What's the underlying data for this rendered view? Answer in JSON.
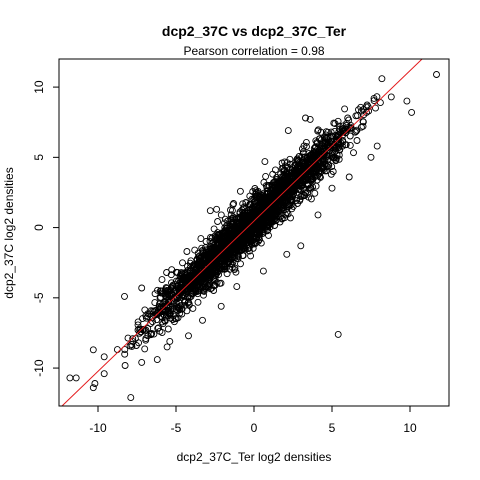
{
  "chart_data": {
    "type": "scatter",
    "title": "dcp2_37C vs dcp2_37C_Ter",
    "subtitle": "Pearson correlation =  0.98",
    "xlabel": "dcp2_37C_Ter log2 densities",
    "ylabel": "dcp2_37C log2 densities",
    "xlim": [
      -12.5,
      12.5
    ],
    "ylim": [
      -12.7,
      12.0
    ],
    "xticks": [
      -10,
      -5,
      0,
      5,
      10
    ],
    "yticks": [
      -10,
      -5,
      0,
      5,
      10
    ],
    "grid": false,
    "fit_line": {
      "slope": 1.07,
      "intercept": 0.47,
      "color": "#e41a1c"
    },
    "point_color": "#000000",
    "notable_points": [
      {
        "x": 11.7,
        "y": 10.9
      },
      {
        "x": 8.2,
        "y": 10.6
      },
      {
        "x": 5.4,
        "y": -7.6
      },
      {
        "x": -7.9,
        "y": -12.1
      },
      {
        "x": -11.8,
        "y": -10.7
      },
      {
        "x": -11.4,
        "y": -10.7
      },
      {
        "x": -10.2,
        "y": -11.1
      },
      {
        "x": -10.3,
        "y": -11.4
      },
      {
        "x": -9.6,
        "y": -10.4
      },
      {
        "x": -10.3,
        "y": -8.7
      },
      {
        "x": -6.3,
        "y": -5.9
      },
      {
        "x": -5.6,
        "y": -3.2
      },
      {
        "x": -3.7,
        "y": -2.9
      },
      {
        "x": -4.3,
        "y": -1.7
      },
      {
        "x": -2.8,
        "y": 1.2
      },
      {
        "x": 0.7,
        "y": 4.7
      },
      {
        "x": 2.2,
        "y": 6.9
      },
      {
        "x": 3.3,
        "y": 7.8
      },
      {
        "x": 3.6,
        "y": 7.7
      },
      {
        "x": 4.6,
        "y": 6.6
      },
      {
        "x": 5.7,
        "y": 6.1
      },
      {
        "x": 7.5,
        "y": 5.0
      },
      {
        "x": 7.9,
        "y": 5.8
      },
      {
        "x": 9.8,
        "y": 9.0
      },
      {
        "x": 10.1,
        "y": 8.2
      },
      {
        "x": -9.6,
        "y": -9.2
      },
      {
        "x": -7.6,
        "y": -7.9
      },
      {
        "x": -6.6,
        "y": -7.6
      },
      {
        "x": -5.1,
        "y": -6.7
      },
      {
        "x": -4.2,
        "y": -5.3
      },
      {
        "x": -3.8,
        "y": -1.6
      },
      {
        "x": -2.5,
        "y": -0.6
      },
      {
        "x": -2.4,
        "y": 1.3
      },
      {
        "x": -0.2,
        "y": 1.6
      },
      {
        "x": 0.1,
        "y": 2.4
      },
      {
        "x": 1.8,
        "y": 4.6
      },
      {
        "x": 3.1,
        "y": 5.6
      },
      {
        "x": 4.2,
        "y": 6.3
      },
      {
        "x": 6.0,
        "y": 7.0
      },
      {
        "x": 6.6,
        "y": 6.2
      },
      {
        "x": 8.1,
        "y": 8.9
      },
      {
        "x": 8.8,
        "y": 9.3
      },
      {
        "x": -8.3,
        "y": -4.9
      },
      {
        "x": -7.2,
        "y": -4.3
      },
      {
        "x": -6.0,
        "y": -4.5
      },
      {
        "x": -5.9,
        "y": -3.7
      },
      {
        "x": -4.9,
        "y": -3.2
      },
      {
        "x": -4.6,
        "y": -3.9
      },
      {
        "x": -3.5,
        "y": -2.5
      },
      {
        "x": -2.6,
        "y": -2.0
      },
      {
        "x": -1.5,
        "y": -0.2
      },
      {
        "x": -0.9,
        "y": 0.6
      },
      {
        "x": 0.9,
        "y": 3.0
      },
      {
        "x": 1.2,
        "y": 3.8
      },
      {
        "x": 2.9,
        "y": 4.6
      },
      {
        "x": -1.1,
        "y": -4.2
      },
      {
        "x": 0.6,
        "y": -3.1
      },
      {
        "x": 2.1,
        "y": -1.9
      },
      {
        "x": 3.0,
        "y": -1.3
      },
      {
        "x": 4.1,
        "y": 0.9
      },
      {
        "x": 5.0,
        "y": 2.8
      },
      {
        "x": 6.1,
        "y": 3.6
      },
      {
        "x": -7.2,
        "y": -9.6
      },
      {
        "x": -6.2,
        "y": -9.4
      },
      {
        "x": -5.4,
        "y": -8.1
      },
      {
        "x": -4.2,
        "y": -7.7
      },
      {
        "x": -3.3,
        "y": -6.6
      },
      {
        "x": -2.1,
        "y": -5.6
      }
    ],
    "bulk": {
      "description_free": true,
      "x_min": -9.5,
      "x_max": 8.8,
      "spread_sd": 0.8,
      "count": 2600,
      "seed": 12345
    }
  }
}
